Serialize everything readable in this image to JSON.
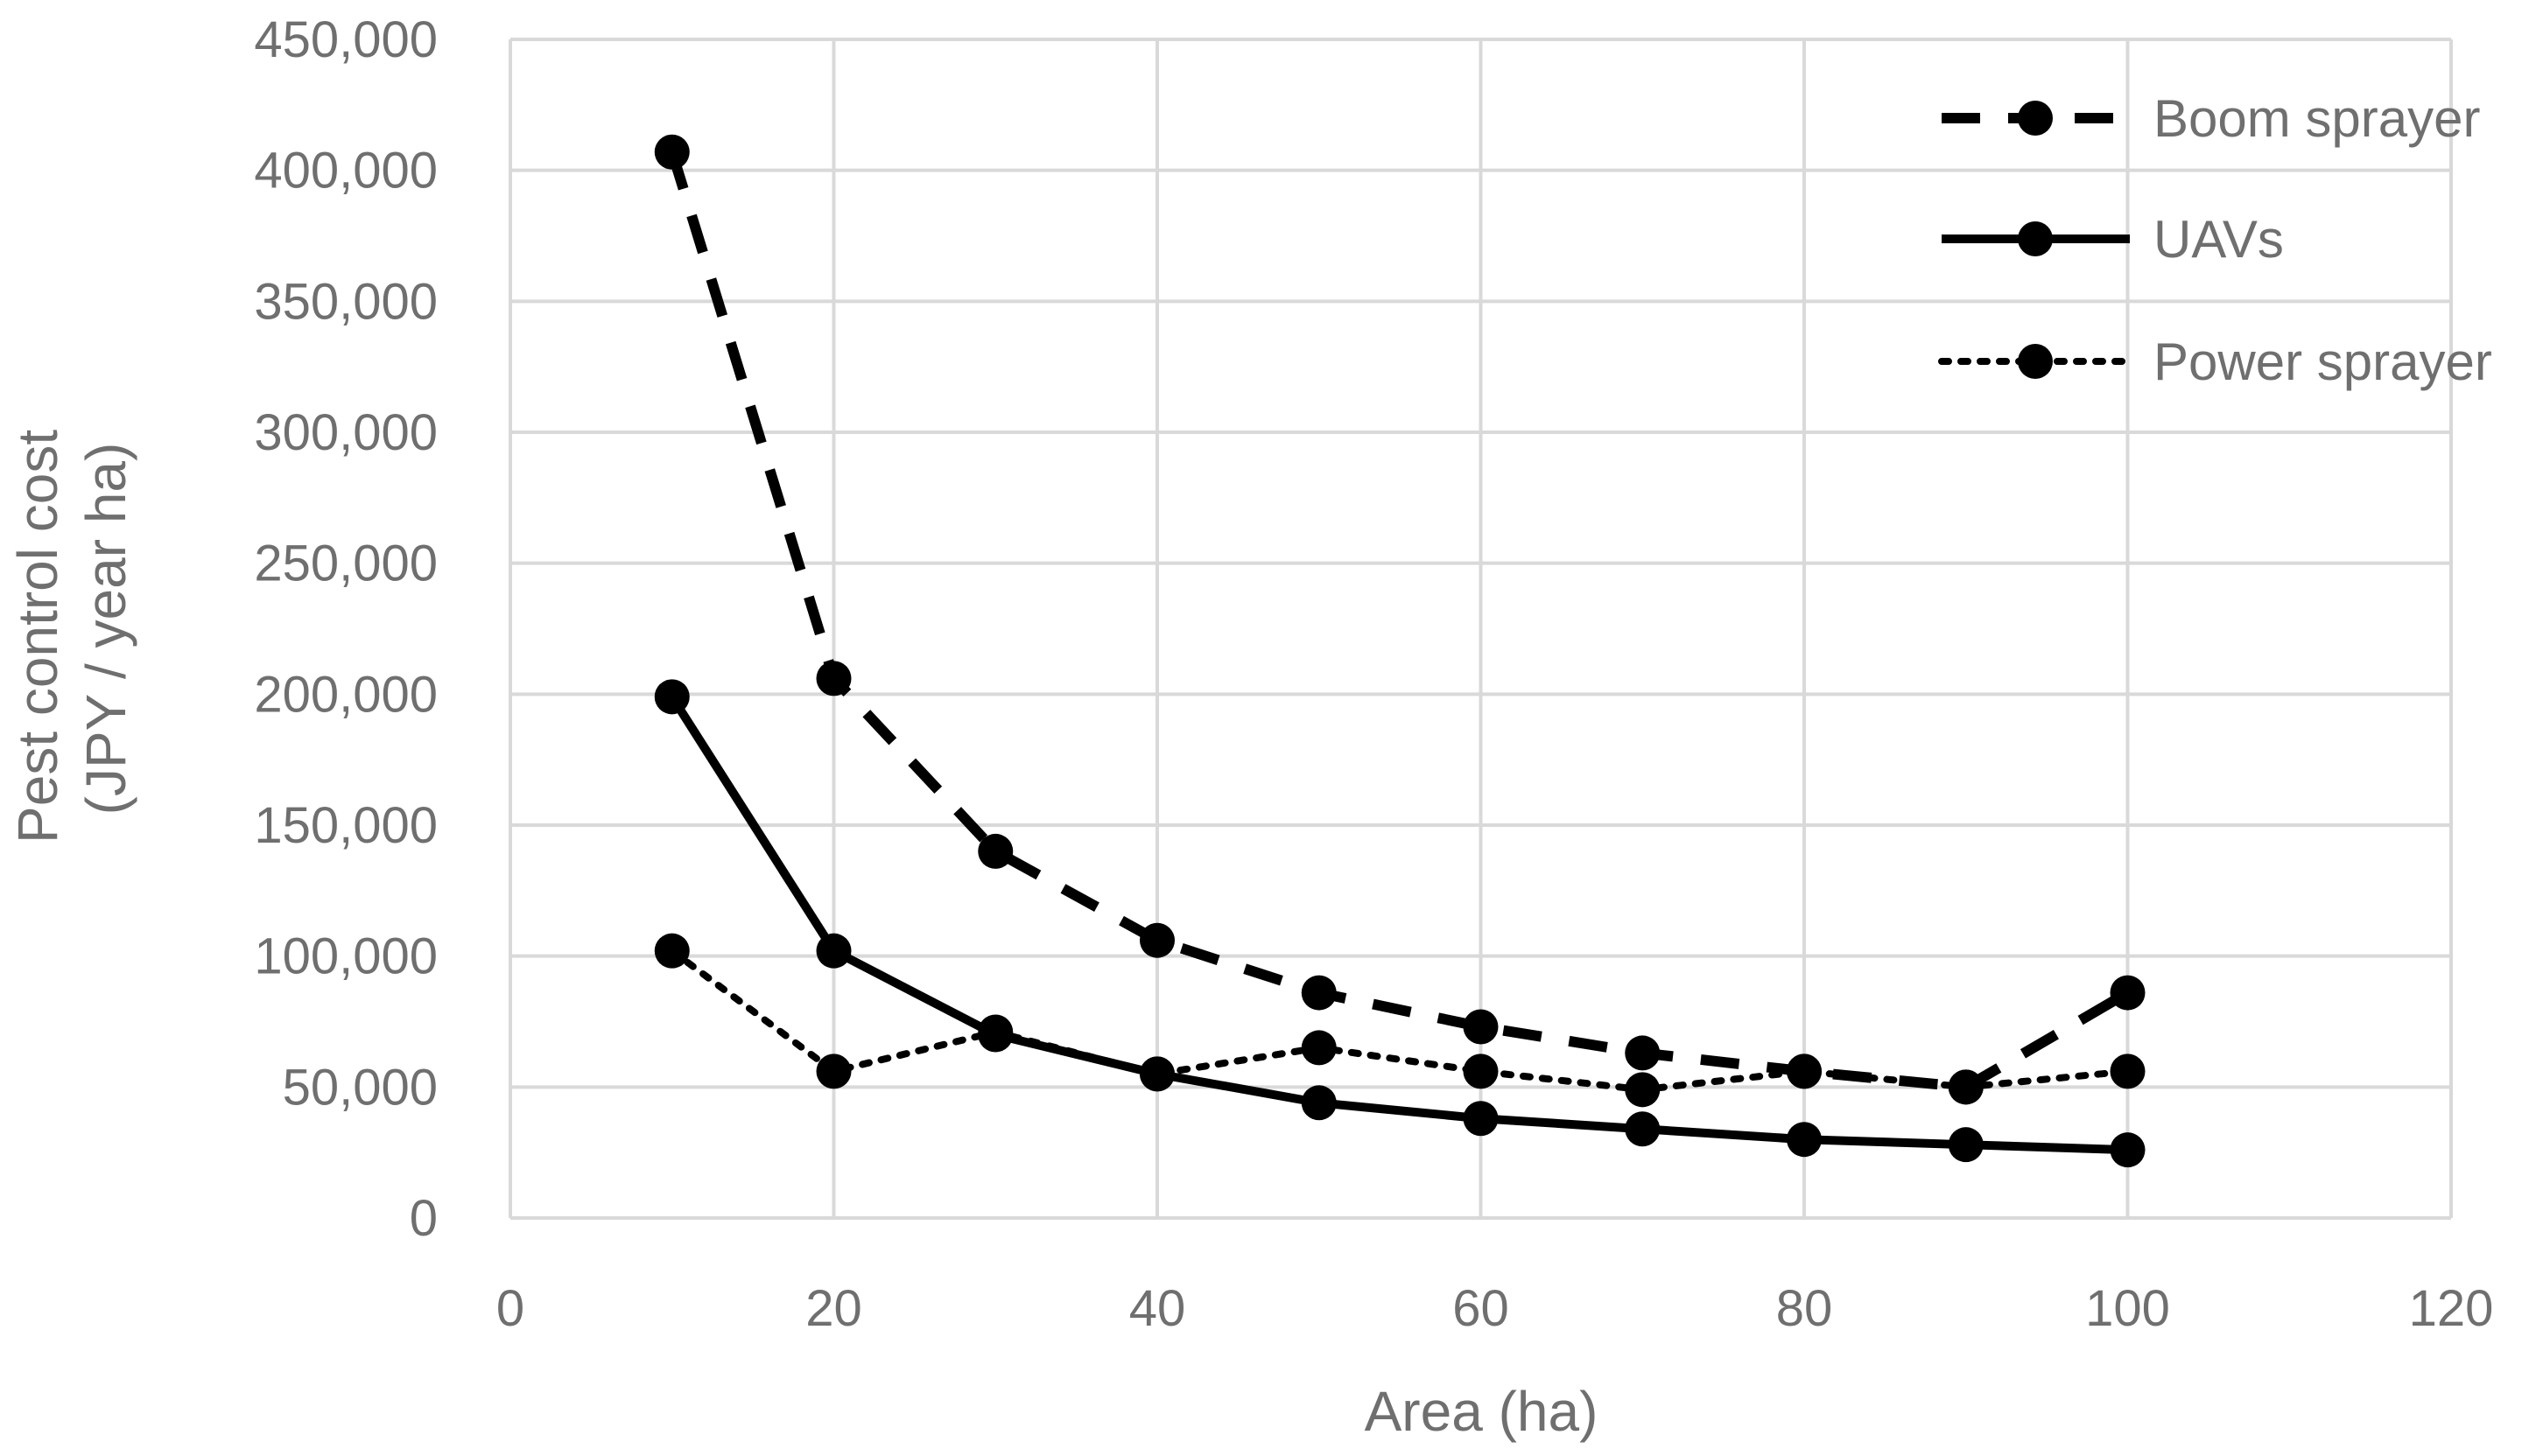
{
  "chart_data": {
    "type": "line",
    "xlabel": "Area (ha)",
    "ylabel": [
      "Pest control cost",
      "(JPY / year ha)"
    ],
    "xlim": [
      0,
      120
    ],
    "ylim": [
      0,
      450000
    ],
    "xticks": [
      0,
      20,
      40,
      60,
      80,
      100,
      120
    ],
    "yticks": [
      0,
      50000,
      100000,
      150000,
      200000,
      250000,
      300000,
      350000,
      400000,
      450000
    ],
    "ytick_labels": [
      "0",
      "50,000",
      "100,000",
      "150,000",
      "200,000",
      "250,000",
      "300,000",
      "350,000",
      "400,000",
      "450,000"
    ],
    "grid": true,
    "legend_position": "top-right",
    "x": [
      10,
      20,
      30,
      40,
      50,
      60,
      70,
      80,
      90,
      100
    ],
    "series": [
      {
        "name": "Boom sprayer",
        "style": "dashed",
        "values": [
          407000,
          206000,
          140000,
          106000,
          86000,
          73000,
          63000,
          56000,
          50000,
          86000
        ]
      },
      {
        "name": "UAVs",
        "style": "solid",
        "values": [
          199000,
          102000,
          70000,
          55000,
          44000,
          38000,
          34000,
          30000,
          28000,
          26000
        ]
      },
      {
        "name": "Power sprayer",
        "style": "dotted",
        "values": [
          102000,
          56000,
          71000,
          55000,
          65000,
          56000,
          49000,
          56000,
          50000,
          56000
        ]
      }
    ],
    "colors": {
      "line": "#000000",
      "grid": "#d9d9d9",
      "text": "#6f6f6f"
    }
  }
}
